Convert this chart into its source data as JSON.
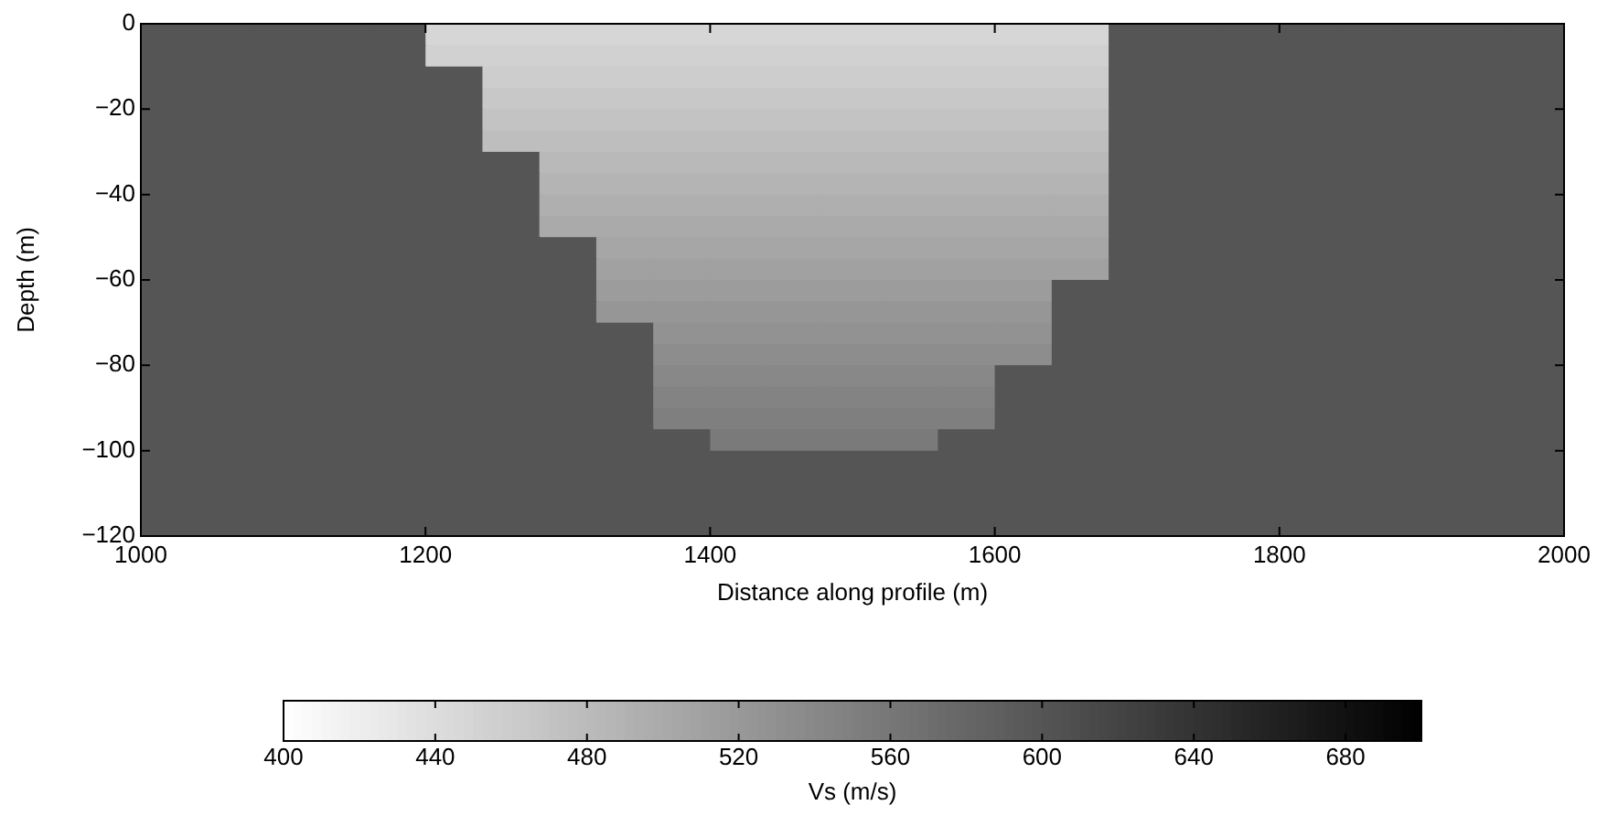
{
  "chart_data": {
    "type": "heatmap",
    "xlabel": "Distance along profile (m)",
    "ylabel": "Depth (m)",
    "clabel": "Vs (m/s)",
    "x": [
      1020,
      1060,
      1100,
      1140,
      1180,
      1220,
      1260,
      1300,
      1340,
      1380,
      1420,
      1460,
      1500,
      1540,
      1580,
      1620,
      1660,
      1700,
      1740,
      1780,
      1820,
      1860,
      1900,
      1940,
      1980
    ],
    "y": [
      -2.5,
      -7.5,
      -12.5,
      -17.5,
      -22.5,
      -27.5,
      -32.5,
      -37.5,
      -42.5,
      -47.5,
      -52.5,
      -57.5,
      -62.5,
      -67.5,
      -72.5,
      -77.5,
      -82.5,
      -87.5,
      -92.5,
      -97.5,
      -102.5,
      -107.5,
      -112.5,
      -117.5
    ],
    "cells": [
      [
        600,
        600,
        600,
        600,
        600,
        448,
        448,
        448,
        448,
        448,
        448,
        448,
        448,
        448,
        448,
        448,
        448,
        600,
        600,
        600,
        600,
        600,
        600,
        600,
        600
      ],
      [
        600,
        600,
        600,
        600,
        600,
        454,
        454,
        454,
        454,
        454,
        454,
        454,
        454,
        454,
        454,
        454,
        454,
        600,
        600,
        600,
        600,
        600,
        600,
        600,
        600
      ],
      [
        600,
        600,
        600,
        600,
        600,
        600,
        459,
        459,
        459,
        459,
        459,
        459,
        459,
        459,
        459,
        459,
        459,
        600,
        600,
        600,
        600,
        600,
        600,
        600,
        600
      ],
      [
        600,
        600,
        600,
        600,
        600,
        600,
        465,
        465,
        465,
        465,
        465,
        465,
        465,
        465,
        465,
        465,
        465,
        600,
        600,
        600,
        600,
        600,
        600,
        600,
        600
      ],
      [
        600,
        600,
        600,
        600,
        600,
        600,
        471,
        471,
        471,
        471,
        471,
        471,
        471,
        471,
        471,
        471,
        471,
        600,
        600,
        600,
        600,
        600,
        600,
        600,
        600
      ],
      [
        600,
        600,
        600,
        600,
        600,
        600,
        477,
        477,
        477,
        477,
        477,
        477,
        477,
        477,
        477,
        477,
        477,
        600,
        600,
        600,
        600,
        600,
        600,
        600,
        600
      ],
      [
        600,
        600,
        600,
        600,
        600,
        600,
        600,
        482,
        482,
        482,
        482,
        482,
        482,
        482,
        482,
        482,
        482,
        600,
        600,
        600,
        600,
        600,
        600,
        600,
        600
      ],
      [
        600,
        600,
        600,
        600,
        600,
        600,
        600,
        488,
        488,
        488,
        488,
        488,
        488,
        488,
        488,
        488,
        488,
        600,
        600,
        600,
        600,
        600,
        600,
        600,
        600
      ],
      [
        600,
        600,
        600,
        600,
        600,
        600,
        600,
        494,
        494,
        494,
        494,
        494,
        494,
        494,
        494,
        494,
        494,
        600,
        600,
        600,
        600,
        600,
        600,
        600,
        600
      ],
      [
        600,
        600,
        600,
        600,
        600,
        600,
        600,
        500,
        500,
        500,
        500,
        500,
        500,
        500,
        500,
        500,
        500,
        600,
        600,
        600,
        600,
        600,
        600,
        600,
        600
      ],
      [
        600,
        600,
        600,
        600,
        600,
        600,
        600,
        600,
        505,
        505,
        505,
        505,
        505,
        505,
        505,
        505,
        505,
        600,
        600,
        600,
        600,
        600,
        600,
        600,
        600
      ],
      [
        600,
        600,
        600,
        600,
        600,
        600,
        600,
        600,
        511,
        511,
        511,
        511,
        511,
        511,
        511,
        511,
        511,
        600,
        600,
        600,
        600,
        600,
        600,
        600,
        600
      ],
      [
        600,
        600,
        600,
        600,
        600,
        600,
        600,
        600,
        517,
        517,
        517,
        517,
        517,
        517,
        517,
        517,
        600,
        600,
        600,
        600,
        600,
        600,
        600,
        600,
        600
      ],
      [
        600,
        600,
        600,
        600,
        600,
        600,
        600,
        600,
        523,
        523,
        523,
        523,
        523,
        523,
        523,
        523,
        600,
        600,
        600,
        600,
        600,
        600,
        600,
        600,
        600
      ],
      [
        600,
        600,
        600,
        600,
        600,
        600,
        600,
        600,
        600,
        528,
        528,
        528,
        528,
        528,
        528,
        528,
        600,
        600,
        600,
        600,
        600,
        600,
        600,
        600,
        600
      ],
      [
        600,
        600,
        600,
        600,
        600,
        600,
        600,
        600,
        600,
        534,
        534,
        534,
        534,
        534,
        534,
        534,
        600,
        600,
        600,
        600,
        600,
        600,
        600,
        600,
        600
      ],
      [
        600,
        600,
        600,
        600,
        600,
        600,
        600,
        600,
        600,
        540,
        540,
        540,
        540,
        540,
        540,
        600,
        600,
        600,
        600,
        600,
        600,
        600,
        600,
        600,
        600
      ],
      [
        600,
        600,
        600,
        600,
        600,
        600,
        600,
        600,
        600,
        546,
        546,
        546,
        546,
        546,
        546,
        600,
        600,
        600,
        600,
        600,
        600,
        600,
        600,
        600,
        600
      ],
      [
        600,
        600,
        600,
        600,
        600,
        600,
        600,
        600,
        600,
        551,
        551,
        551,
        551,
        551,
        551,
        600,
        600,
        600,
        600,
        600,
        600,
        600,
        600,
        600,
        600
      ],
      [
        600,
        600,
        600,
        600,
        600,
        600,
        600,
        600,
        600,
        600,
        557,
        557,
        557,
        557,
        600,
        600,
        600,
        600,
        600,
        600,
        600,
        600,
        600,
        600,
        600
      ],
      [
        600,
        600,
        600,
        600,
        600,
        600,
        600,
        600,
        600,
        600,
        600,
        600,
        600,
        600,
        600,
        600,
        600,
        600,
        600,
        600,
        600,
        600,
        600,
        600,
        600
      ],
      [
        600,
        600,
        600,
        600,
        600,
        600,
        600,
        600,
        600,
        600,
        600,
        600,
        600,
        600,
        600,
        600,
        600,
        600,
        600,
        600,
        600,
        600,
        600,
        600,
        600
      ],
      [
        600,
        600,
        600,
        600,
        600,
        600,
        600,
        600,
        600,
        600,
        600,
        600,
        600,
        600,
        600,
        600,
        600,
        600,
        600,
        600,
        600,
        600,
        600,
        600,
        600
      ],
      [
        600,
        600,
        600,
        600,
        600,
        600,
        600,
        600,
        600,
        600,
        600,
        600,
        600,
        600,
        600,
        600,
        600,
        600,
        600,
        600,
        600,
        600,
        600,
        600,
        600
      ]
    ],
    "xlim": [
      1000,
      2000
    ],
    "xticks": [
      1000,
      1200,
      1400,
      1600,
      1800,
      2000
    ],
    "ylim": [
      -120,
      0
    ],
    "yticks": [
      {
        "value": -120,
        "label": "−120"
      },
      {
        "value": -100,
        "label": "−100"
      },
      {
        "value": -80,
        "label": "−80"
      },
      {
        "value": -60,
        "label": "−60"
      },
      {
        "value": -40,
        "label": "−40"
      },
      {
        "value": -20,
        "label": "−20"
      },
      0
    ],
    "clim": [
      400,
      700
    ],
    "cticks": [
      400,
      440,
      480,
      520,
      560,
      600,
      640,
      680
    ]
  }
}
